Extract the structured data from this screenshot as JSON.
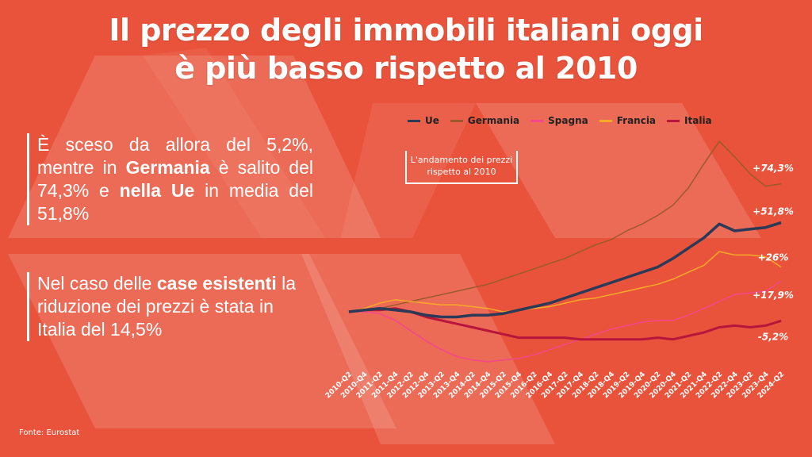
{
  "title": {
    "line1": "Il prezzo degli immobili italiani oggi",
    "line2": "è più basso rispetto al 2010"
  },
  "paragraphs": [
    [
      {
        "t": "È sceso da allora del 5,2%, mentre in ",
        "b": false
      },
      {
        "t": "Germania",
        "b": true
      },
      {
        "t": " è salito del 74,3% e ",
        "b": false
      },
      {
        "t": "nella Ue",
        "b": true
      },
      {
        "t": " in media del 51,8%",
        "b": false
      }
    ],
    [
      {
        "t": "Nel caso delle ",
        "b": false
      },
      {
        "t": "case esistenti",
        "b": true
      },
      {
        "t": " la riduzione dei prezzi è stata in Italia del 14,5%",
        "b": false
      }
    ]
  ],
  "source": "Fonte: Eurostat",
  "colors": {
    "background": "#e9533b"
  },
  "chart_data": {
    "type": "line",
    "title": "L'andamento dei prezzi rispetto al 2010",
    "xlabel": "",
    "ylabel": "",
    "ylim": [
      -30,
      100
    ],
    "grid": false,
    "legend_placement": "top",
    "categories": [
      "2010-Q2",
      "2010-Q4",
      "2011-Q2",
      "2011-Q4",
      "2012-Q2",
      "2012-Q4",
      "2013-Q2",
      "2013-Q4",
      "2014-Q2",
      "2014-Q4",
      "2015-Q2",
      "2015-Q4",
      "2016-Q2",
      "2016-Q4",
      "2017-Q2",
      "2017-Q4",
      "2018-Q2",
      "2018-Q4",
      "2019-Q2",
      "2019-Q4",
      "2020-Q2",
      "2020-Q4",
      "2021-Q2",
      "2021-Q4",
      "2022-Q2",
      "2022-Q4",
      "2023-Q2",
      "2023-Q4",
      "2024-Q2"
    ],
    "series": [
      {
        "name": "Ue",
        "color": "#2b3a57",
        "width": 3.5,
        "end_label": "+51,8%",
        "values": [
          0,
          1,
          2,
          1,
          0,
          -2,
          -3,
          -3,
          -2,
          -2,
          -1,
          1,
          3,
          5,
          8,
          11,
          14,
          17,
          20,
          23,
          26,
          31,
          37,
          43,
          51,
          47,
          48,
          49,
          51.8
        ]
      },
      {
        "name": "Germania",
        "color": "#9b5a2c",
        "width": 1.5,
        "end_label": "+74,3%",
        "values": [
          0,
          1,
          2,
          4,
          6,
          8,
          10,
          12,
          14,
          16,
          19,
          22,
          25,
          28,
          31,
          35,
          39,
          42,
          47,
          51,
          56,
          62,
          72,
          86,
          99,
          90,
          80,
          73,
          74.3
        ]
      },
      {
        "name": "Spagna",
        "color": "#f4468c",
        "width": 1.5,
        "end_label": "+17,9%",
        "values": [
          0,
          0,
          -1,
          -5,
          -11,
          -17,
          -22,
          -26,
          -28,
          -29,
          -28,
          -27,
          -25,
          -22,
          -19,
          -16,
          -13,
          -10,
          -8,
          -6,
          -5,
          -5,
          -2,
          2,
          6,
          10,
          11,
          12,
          17.9
        ]
      },
      {
        "name": "Francia",
        "color": "#f7a928",
        "width": 1.5,
        "end_label": "+26%",
        "values": [
          0,
          2,
          5,
          7,
          6,
          5,
          4,
          4,
          3,
          2,
          0,
          1,
          2,
          3,
          5,
          7,
          8,
          10,
          12,
          14,
          16,
          19,
          23,
          27,
          35,
          33,
          33,
          32,
          26
        ]
      },
      {
        "name": "Italia",
        "color": "#b8153c",
        "width": 3,
        "end_label": "-5,2%",
        "values": [
          0,
          1,
          1,
          2,
          0,
          -3,
          -5,
          -7,
          -9,
          -11,
          -13,
          -15,
          -15,
          -15,
          -15,
          -16,
          -16,
          -16,
          -16,
          -16,
          -15,
          -16,
          -14,
          -12,
          -9,
          -8,
          -9,
          -8,
          -5.2
        ]
      }
    ]
  }
}
